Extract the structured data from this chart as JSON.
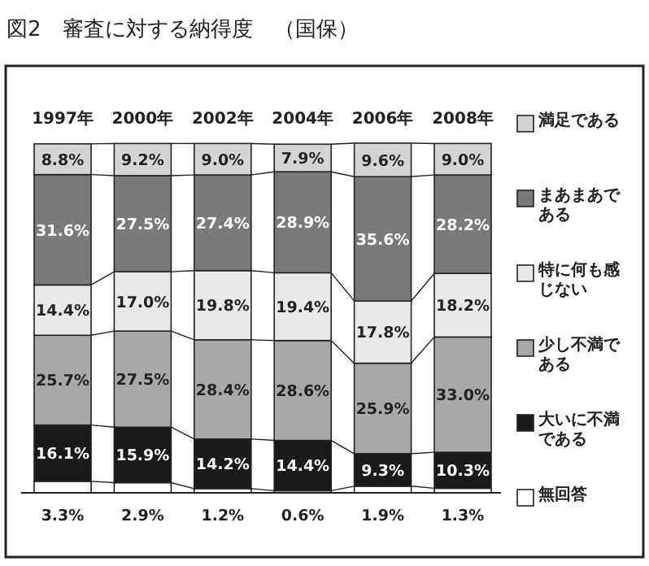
{
  "chart_data": {
    "type": "bar",
    "stacked": true,
    "title": "図2　審査に対する納得度　（国保）",
    "categories": [
      "1997年",
      "2000年",
      "2002年",
      "2004年",
      "2006年",
      "2008年"
    ],
    "series": [
      {
        "name": "無回答",
        "color": "#ffffff",
        "values": [
          3.3,
          2.9,
          1.2,
          0.6,
          1.9,
          1.3
        ],
        "value_labels": [
          "3.3%",
          "2.9%",
          "1.2%",
          "0.6%",
          "1.9%",
          "1.3%"
        ]
      },
      {
        "name": "大いに不満である",
        "color": "#1a1a1a",
        "values": [
          16.1,
          15.9,
          14.2,
          14.4,
          9.3,
          10.3
        ],
        "value_labels": [
          "16.1%",
          "15.9%",
          "14.2%",
          "14.4%",
          "9.3%",
          "10.3%"
        ]
      },
      {
        "name": "少し不満である",
        "color": "#a8a8a8",
        "values": [
          25.7,
          27.5,
          28.4,
          28.6,
          25.9,
          33.0
        ],
        "value_labels": [
          "25.7%",
          "27.5%",
          "28.4%",
          "28.6%",
          "25.9%",
          "33.0%"
        ]
      },
      {
        "name": "特に何も感じない",
        "color": "#e8e8e8",
        "values": [
          14.4,
          17.0,
          19.8,
          19.4,
          17.8,
          18.2
        ],
        "value_labels": [
          "14.4%",
          "17.0%",
          "19.8%",
          "19.4%",
          "17.8%",
          "18.2%"
        ]
      },
      {
        "name": "まあまあである",
        "color": "#7a7a7a",
        "values": [
          31.6,
          27.5,
          27.4,
          28.9,
          35.6,
          28.2
        ],
        "value_labels": [
          "31.6%",
          "27.5%",
          "27.4%",
          "28.9%",
          "35.6%",
          "28.2%"
        ]
      },
      {
        "name": "満足である",
        "color": "#d4d4d4",
        "values": [
          8.8,
          9.2,
          9.0,
          7.9,
          9.6,
          9.0
        ],
        "value_labels": [
          "8.8%",
          "9.2%",
          "9.0%",
          "7.9%",
          "9.6%",
          "9.0%"
        ]
      }
    ],
    "legend": "right"
  }
}
